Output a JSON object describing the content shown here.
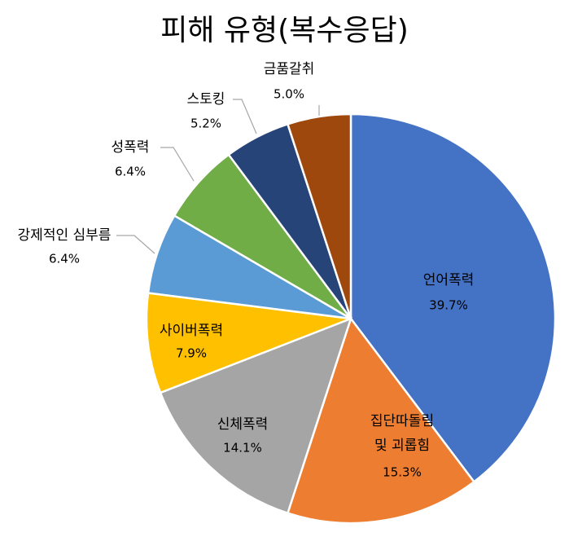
{
  "chart_data": {
    "type": "pie",
    "title": "피해 유형(복수응답)",
    "slices": [
      {
        "label": "언어폭력",
        "value": 39.7,
        "value_label": "39.7%",
        "color": "#4472C4"
      },
      {
        "label": "집단따돌림 및 괴롭힘",
        "label_lines": [
          "집단따돌림",
          "및 괴롭힘"
        ],
        "value": 15.3,
        "value_label": "15.3%",
        "color": "#ED7D31"
      },
      {
        "label": "신체폭력",
        "value": 14.1,
        "value_label": "14.1%",
        "color": "#A5A5A5"
      },
      {
        "label": "사이버폭력",
        "value": 7.9,
        "value_label": "7.9%",
        "color": "#FFC000"
      },
      {
        "label": "강제적인 심부름",
        "value": 6.4,
        "value_label": "6.4%",
        "color": "#5B9BD5"
      },
      {
        "label": "성폭력",
        "value": 6.4,
        "value_label": "6.4%",
        "color": "#70AD47"
      },
      {
        "label": "스토킹",
        "value": 5.2,
        "value_label": "5.2%",
        "color": "#264478"
      },
      {
        "label": "금품갈취",
        "value": 5.0,
        "value_label": "5.0%",
        "color": "#9E480E"
      }
    ]
  }
}
